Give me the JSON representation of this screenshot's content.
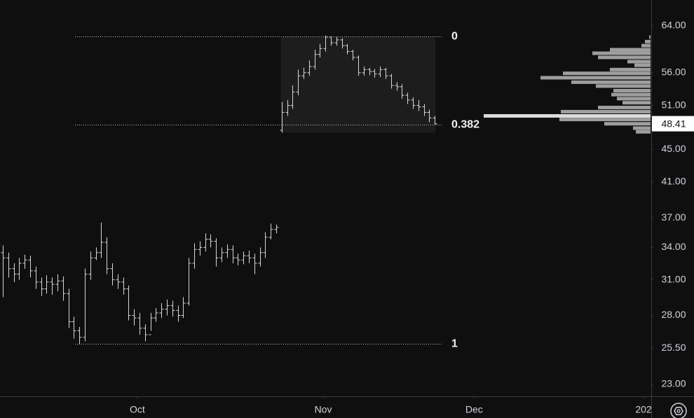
{
  "chart_data": {
    "type": "ohlc",
    "log_scale": true,
    "open": [
      33.5,
      33,
      32,
      31.5,
      32.5,
      32.8,
      31.8,
      30.8,
      30.2,
      30.8,
      30.6,
      30.9,
      29.8,
      27.5,
      26.8,
      26.3,
      31.5,
      33,
      33.5,
      34.5,
      32,
      31,
      30.8,
      30.2,
      28,
      27.8,
      27,
      26.5,
      27.8,
      28.2,
      28.5,
      28.8,
      28.4,
      28,
      29,
      32.5,
      33.8,
      34,
      34.8,
      34.6,
      33,
      33.5,
      33.8,
      33,
      32.8,
      33.2,
      33,
      32.5,
      33.5,
      35,
      35.8,
      47.5,
      50,
      51,
      53,
      55.5,
      56,
      57,
      59,
      60,
      62,
      61,
      61.5,
      60.5,
      59.5,
      58.5,
      56,
      56.5,
      56.2,
      55.8,
      56.5,
      55.5,
      54,
      53.8,
      52.5,
      51.8,
      51,
      50.8,
      50,
      49.2
    ],
    "high": [
      34.2,
      33.5,
      32.5,
      33,
      33.3,
      33.2,
      32.2,
      31.2,
      31.4,
      31.2,
      31.5,
      31.3,
      30.2,
      27.9,
      27.1,
      32,
      33.6,
      34,
      36.5,
      35,
      32.5,
      31.5,
      31.2,
      30.5,
      28.5,
      28.2,
      27.3,
      28.2,
      28.6,
      29,
      29.3,
      29.2,
      28.8,
      29.5,
      33,
      34.4,
      34.6,
      35.4,
      35.3,
      34.9,
      34,
      34.3,
      34.2,
      33.4,
      33.6,
      33.7,
      33.4,
      34,
      35.5,
      36.4,
      36.3,
      51.5,
      51.8,
      54,
      56.5,
      56.8,
      58,
      59.8,
      60.8,
      62.3,
      62,
      62,
      61.8,
      60.8,
      59.8,
      58.8,
      57,
      56.8,
      56.6,
      57,
      56.8,
      55.8,
      54.5,
      54.2,
      52.9,
      52.2,
      51.8,
      51.2,
      50.4,
      49.5
    ],
    "low": [
      29.5,
      31.2,
      30.8,
      31,
      32,
      31.2,
      30.2,
      29.6,
      29.8,
      29.7,
      30,
      29.2,
      27,
      26.2,
      25.8,
      26,
      31,
      32.8,
      33,
      31.5,
      30.5,
      30.2,
      29.7,
      27.6,
      27.2,
      26.5,
      26,
      26.8,
      27.5,
      27.8,
      28,
      27.9,
      27.5,
      27.8,
      28.8,
      32,
      33.2,
      33.6,
      34,
      32.2,
      32.6,
      33,
      32.5,
      32.3,
      32.4,
      32.5,
      31.5,
      32.2,
      33,
      34.8,
      35.4,
      47.2,
      49.5,
      50.5,
      52.5,
      55,
      55.5,
      56.5,
      58.5,
      59.5,
      60.5,
      60.5,
      60,
      59,
      58,
      55.5,
      55.5,
      55.6,
      55.2,
      55.3,
      55,
      53.5,
      53.2,
      52,
      51.2,
      50.5,
      50.2,
      49.5,
      48.6,
      48.2
    ],
    "close": [
      33,
      32,
      31.5,
      32.5,
      32.8,
      31.8,
      30.8,
      30.2,
      30.8,
      30.6,
      30.9,
      29.8,
      27.5,
      26.8,
      26.3,
      31.5,
      33,
      33.5,
      34.5,
      32,
      31,
      30.8,
      30.2,
      28,
      27.8,
      27,
      26.5,
      27.8,
      28.2,
      28.5,
      28.8,
      28.4,
      28,
      29,
      32.5,
      33.8,
      34,
      34.8,
      34.6,
      33,
      33.5,
      33.8,
      33,
      32.8,
      33.2,
      33,
      32.5,
      33.5,
      35,
      35.8,
      36,
      50,
      51,
      53,
      55.5,
      56,
      57,
      59,
      60,
      62,
      61,
      61.5,
      60.5,
      59.5,
      58.5,
      56,
      56.5,
      56.2,
      55.8,
      56.5,
      55.5,
      54,
      53.8,
      52.5,
      51.8,
      51,
      50.8,
      50,
      49.2,
      48.41
    ],
    "color": "#d6d6d6",
    "xlim": [
      -0.51,
      118.6
    ],
    "xticks": [
      {
        "value": 24.6,
        "label": "Oct"
      },
      {
        "value": 58.6,
        "label": "Nov"
      },
      {
        "value": 86.2,
        "label": "Dec"
      },
      {
        "value": 117.2,
        "label": "202"
      }
    ],
    "ylim": [
      22.27,
      68.92
    ],
    "yticks": [
      {
        "value": 64,
        "label": "64.00"
      },
      {
        "value": 56,
        "label": "56.00"
      },
      {
        "value": 51,
        "label": "51.00"
      },
      {
        "value": 45,
        "label": "45.00"
      },
      {
        "value": 41,
        "label": "41.00"
      },
      {
        "value": 37,
        "label": "37.00"
      },
      {
        "value": 34,
        "label": "34.00"
      },
      {
        "value": 31,
        "label": "31.00"
      },
      {
        "value": 28,
        "label": "28.00"
      },
      {
        "value": 25.5,
        "label": "25.50"
      },
      {
        "value": 23,
        "label": "23.00"
      }
    ],
    "fib_levels": [
      {
        "label": "0",
        "price": 62.1
      },
      {
        "label": "0.382",
        "price": 48.28
      },
      {
        "label": "1",
        "price": 25.8
      }
    ],
    "last_price": 48.41,
    "volume_profile": {
      "color": "#9e9e9e",
      "poc_color": "#dcdcdc",
      "prices": [
        62.0,
        61.2,
        60.5,
        59.8,
        59.2,
        58.5,
        57.8,
        57.2,
        56.5,
        55.9,
        55.2,
        54.5,
        53.9,
        53.2,
        52.6,
        52.0,
        51.4,
        50.7,
        50.1,
        49.5,
        49.0,
        48.4,
        47.8,
        47.3
      ],
      "volumes": [
        2,
        8,
        13,
        58,
        83,
        75,
        33,
        23,
        58,
        125,
        157,
        113,
        78,
        53,
        56,
        48,
        40,
        75,
        128,
        238,
        130,
        66,
        25,
        21
      ]
    }
  }
}
